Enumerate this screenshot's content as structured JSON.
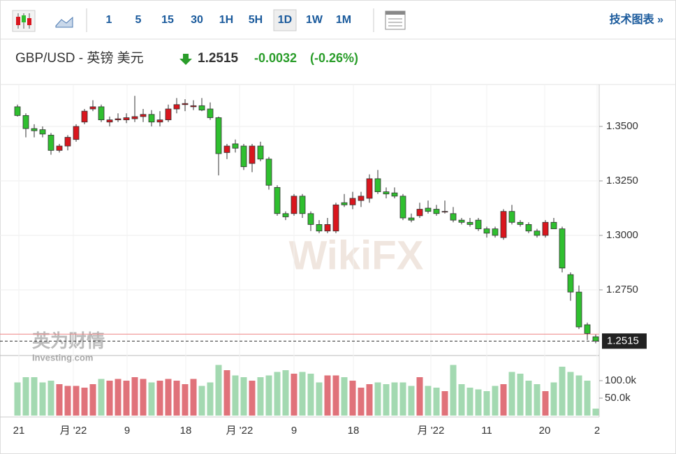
{
  "toolbar": {
    "intervals": [
      "1",
      "5",
      "15",
      "30",
      "1H",
      "5H",
      "1D",
      "1W",
      "1M"
    ],
    "link": "技术图表 »"
  },
  "header": {
    "symbol": "GBP/USD - 英镑 美元",
    "change": -0.0032,
    "change_pct": {
      "value": -0.26,
      "label": "(-0.26%)"
    }
  },
  "watermarks": [
    "WikiFX",
    "英为财情",
    "Investing.com"
  ],
  "chart_data": {
    "type": "candlestick",
    "last_price": 1.2515,
    "previous_close": 1.2547,
    "open": [
      1.359,
      1.355,
      1.349,
      1.3485,
      1.346,
      1.339,
      1.341,
      1.344,
      1.352,
      1.358,
      1.359,
      1.352,
      1.353,
      1.353,
      1.3535,
      1.3545,
      1.3555,
      1.352,
      1.353,
      1.358,
      1.36,
      1.359,
      1.3595,
      1.358,
      1.354,
      1.338,
      1.342,
      1.341,
      1.333,
      1.341,
      1.335,
      1.322,
      1.31,
      1.31,
      1.318,
      1.31,
      1.305,
      1.302,
      1.302,
      1.315,
      1.314,
      1.316,
      1.317,
      1.326,
      1.32,
      1.3195,
      1.318,
      1.308,
      1.309,
      1.3125,
      1.312,
      1.311,
      1.31,
      1.307,
      1.306,
      1.307,
      1.303,
      1.303,
      1.299,
      1.311,
      1.306,
      1.305,
      1.302,
      1.3,
      1.306,
      1.303,
      1.282,
      1.274,
      1.259,
      1.2535
    ],
    "high": [
      1.36,
      1.356,
      1.351,
      1.35,
      1.347,
      1.342,
      1.346,
      1.351,
      1.358,
      1.362,
      1.36,
      1.3545,
      1.356,
      1.356,
      1.364,
      1.358,
      1.3575,
      1.357,
      1.36,
      1.363,
      1.3625,
      1.362,
      1.363,
      1.361,
      1.3545,
      1.342,
      1.344,
      1.342,
      1.342,
      1.343,
      1.336,
      1.323,
      1.311,
      1.319,
      1.319,
      1.311,
      1.307,
      1.308,
      1.315,
      1.319,
      1.32,
      1.32,
      1.328,
      1.33,
      1.322,
      1.322,
      1.319,
      1.31,
      1.315,
      1.316,
      1.314,
      1.316,
      1.313,
      1.308,
      1.308,
      1.308,
      1.304,
      1.304,
      1.312,
      1.314,
      1.307,
      1.306,
      1.303,
      1.307,
      1.308,
      1.304,
      1.283,
      1.277,
      1.26,
      1.2545
    ],
    "low": [
      1.3545,
      1.345,
      1.345,
      1.345,
      1.337,
      1.338,
      1.339,
      1.343,
      1.351,
      1.357,
      1.352,
      1.35,
      1.352,
      1.3515,
      1.352,
      1.352,
      1.35,
      1.35,
      1.352,
      1.356,
      1.357,
      1.3575,
      1.357,
      1.353,
      1.3275,
      1.335,
      1.338,
      1.33,
      1.329,
      1.334,
      1.321,
      1.309,
      1.307,
      1.309,
      1.308,
      1.302,
      1.301,
      1.301,
      1.301,
      1.313,
      1.312,
      1.313,
      1.315,
      1.319,
      1.317,
      1.317,
      1.307,
      1.306,
      1.308,
      1.31,
      1.309,
      1.31,
      1.306,
      1.305,
      1.304,
      1.302,
      1.299,
      1.299,
      1.298,
      1.305,
      1.304,
      1.301,
      1.299,
      1.299,
      1.303,
      1.283,
      1.27,
      1.257,
      1.252,
      1.2505
    ],
    "close": [
      1.355,
      1.349,
      1.348,
      1.3465,
      1.339,
      1.341,
      1.345,
      1.35,
      1.357,
      1.359,
      1.353,
      1.353,
      1.3535,
      1.354,
      1.3545,
      1.3555,
      1.352,
      1.353,
      1.358,
      1.36,
      1.3605,
      1.3595,
      1.3575,
      1.354,
      1.3375,
      1.341,
      1.34,
      1.3315,
      1.341,
      1.335,
      1.323,
      1.31,
      1.3085,
      1.318,
      1.31,
      1.305,
      1.302,
      1.305,
      1.314,
      1.314,
      1.317,
      1.318,
      1.326,
      1.32,
      1.319,
      1.318,
      1.308,
      1.307,
      1.312,
      1.311,
      1.31,
      1.311,
      1.307,
      1.306,
      1.305,
      1.303,
      1.301,
      1.3,
      1.311,
      1.306,
      1.305,
      1.302,
      1.3,
      1.306,
      1.303,
      1.285,
      1.274,
      1.258,
      1.255,
      1.2515
    ],
    "volume": [
      95,
      110,
      110,
      95,
      100,
      90,
      85,
      85,
      80,
      90,
      105,
      100,
      105,
      100,
      110,
      105,
      95,
      100,
      105,
      100,
      90,
      105,
      85,
      95,
      145,
      130,
      115,
      110,
      100,
      110,
      115,
      125,
      130,
      120,
      125,
      120,
      95,
      115,
      115,
      110,
      100,
      80,
      90,
      95,
      90,
      95,
      95,
      85,
      110,
      85,
      80,
      70,
      145,
      90,
      80,
      75,
      70,
      85,
      90,
      125,
      120,
      100,
      90,
      70,
      95,
      140,
      125,
      115,
      100,
      20
    ],
    "ylim": [
      1.2452,
      1.3689
    ],
    "yticks": [
      {
        "value": 1.35,
        "label": "1.3500"
      },
      {
        "value": 1.325,
        "label": "1.3250"
      },
      {
        "value": 1.3,
        "label": "1.3000"
      },
      {
        "value": 1.275,
        "label": "1.2750"
      }
    ],
    "volume_ylim": [
      0,
      170
    ],
    "volume_ticks": [
      {
        "value": 100,
        "label": "100.0k"
      },
      {
        "value": 50,
        "label": "50.0k"
      }
    ],
    "x_labels": [
      "21",
      "月 '22",
      "9",
      "18",
      "月 '22",
      "9",
      "18",
      "月 '22",
      "11",
      "20",
      "2"
    ],
    "up_color": "#d9161e",
    "down_color": "#2fbf2f",
    "up_volume_color": "#e0727a",
    "down_volume_color": "#a3d9b1",
    "grid": true
  }
}
